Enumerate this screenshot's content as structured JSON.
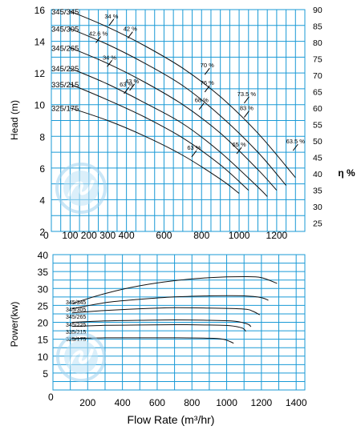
{
  "chart_data": [
    {
      "type": "line",
      "name": "head",
      "xlabel": "",
      "ylabel": "Head (m)",
      "y2label": "η %",
      "xlim": [
        0,
        1350
      ],
      "ylim": [
        2,
        16
      ],
      "y2lim": [
        22.5,
        90
      ],
      "grid": true,
      "x_ticks": [
        100,
        200,
        300,
        400,
        600,
        800,
        1000,
        1200
      ],
      "x_tick_labels": [
        "100",
        "200",
        "300",
        "400",
        "600",
        "800",
        "1000",
        "1200"
      ],
      "y_ticks": [
        2,
        4,
        6,
        8,
        10,
        12,
        14,
        16
      ],
      "y2_ticks": [
        25,
        30,
        35,
        40,
        45,
        50,
        55,
        60,
        65,
        70,
        75,
        80,
        85,
        90
      ],
      "origin_label": "0",
      "series": [
        {
          "name": "345/345",
          "x": [
            100,
            300,
            500,
            700,
            900,
            1100,
            1300
          ],
          "y": [
            15.9,
            14.9,
            13.7,
            12.3,
            10.5,
            8.2,
            5.4
          ]
        },
        {
          "name": "345/305",
          "x": [
            100,
            300,
            500,
            700,
            900,
            1100,
            1250
          ],
          "y": [
            14.8,
            13.8,
            12.6,
            11.2,
            9.3,
            7.0,
            4.9
          ]
        },
        {
          "name": "345/265",
          "x": [
            100,
            300,
            500,
            700,
            900,
            1100,
            1200
          ],
          "y": [
            13.6,
            12.6,
            11.4,
            10.0,
            8.2,
            5.9,
            4.6
          ]
        },
        {
          "name": "345/225",
          "x": [
            100,
            300,
            500,
            700,
            900,
            1100,
            1150
          ],
          "y": [
            12.3,
            11.3,
            10.1,
            8.8,
            7.0,
            4.8,
            4.2
          ]
        },
        {
          "name": "335/215",
          "x": [
            100,
            300,
            500,
            700,
            900,
            1050
          ],
          "y": [
            11.3,
            10.3,
            9.2,
            7.9,
            6.2,
            4.6
          ]
        },
        {
          "name": "325/175",
          "x": [
            100,
            300,
            500,
            700,
            900,
            1000
          ],
          "y": [
            9.8,
            9.0,
            8.0,
            6.8,
            5.3,
            4.4
          ]
        }
      ],
      "annotations": [
        {
          "text": "34 %",
          "x": 320,
          "y": 15.2
        },
        {
          "text": "42 %",
          "x": 420,
          "y": 14.4
        },
        {
          "text": "42.6 %",
          "x": 250,
          "y": 14.1
        },
        {
          "text": "34 %",
          "x": 310,
          "y": 12.6
        },
        {
          "text": "43 %",
          "x": 430,
          "y": 11.1
        },
        {
          "text": "63 %",
          "x": 400,
          "y": 10.9
        },
        {
          "text": "70 %",
          "x": 830,
          "y": 12.1
        },
        {
          "text": "76 %",
          "x": 830,
          "y": 11.0
        },
        {
          "text": "73.5 %",
          "x": 1040,
          "y": 10.3
        },
        {
          "text": "68 %",
          "x": 800,
          "y": 9.9
        },
        {
          "text": "83 %",
          "x": 1040,
          "y": 9.4
        },
        {
          "text": "63.5 %",
          "x": 1300,
          "y": 7.3
        },
        {
          "text": "63 %",
          "x": 760,
          "y": 6.9
        },
        {
          "text": "65 %",
          "x": 1000,
          "y": 7.1
        }
      ]
    },
    {
      "type": "line",
      "name": "power",
      "xlabel": "Flow Rate (m³/hr)",
      "ylabel": "Power(kw)",
      "xlim": [
        0,
        1450
      ],
      "ylim": [
        0,
        40
      ],
      "grid": true,
      "x_ticks": [
        200,
        400,
        600,
        800,
        1000,
        1200,
        1400
      ],
      "y_ticks": [
        0,
        5,
        10,
        15,
        20,
        25,
        30,
        35,
        40
      ],
      "origin_label": "0",
      "series": [
        {
          "name": "345/345",
          "x": [
            110,
            300,
            500,
            700,
            900,
            1100,
            1200,
            1290
          ],
          "y": [
            25.5,
            28.5,
            30.8,
            32.3,
            33.2,
            33.5,
            33.2,
            31.5
          ]
        },
        {
          "name": "345/305",
          "x": [
            110,
            300,
            500,
            700,
            900,
            1100,
            1200,
            1240
          ],
          "y": [
            24.0,
            25.8,
            26.8,
            27.5,
            27.8,
            27.8,
            27.3,
            26.5
          ]
        },
        {
          "name": "345/265",
          "x": [
            110,
            300,
            500,
            700,
            900,
            1100,
            1150,
            1190
          ],
          "y": [
            22.8,
            23.5,
            24.0,
            24.3,
            24.2,
            23.9,
            23.3,
            22.2
          ]
        },
        {
          "name": "345/225",
          "x": [
            110,
            300,
            500,
            700,
            900,
            1050,
            1120,
            1140
          ],
          "y": [
            20.0,
            20.4,
            20.6,
            20.7,
            20.6,
            20.3,
            19.5,
            18.7
          ]
        },
        {
          "name": "335/215",
          "x": [
            110,
            300,
            500,
            700,
            900,
            1020,
            1090,
            1110
          ],
          "y": [
            18.8,
            19.1,
            19.2,
            19.3,
            19.2,
            19.0,
            18.3,
            17.3
          ]
        },
        {
          "name": "325/175",
          "x": [
            110,
            300,
            500,
            700,
            900,
            980,
            1020,
            1040
          ],
          "y": [
            15.2,
            15.4,
            15.4,
            15.4,
            15.3,
            15.0,
            14.3,
            13.8
          ]
        }
      ]
    }
  ]
}
